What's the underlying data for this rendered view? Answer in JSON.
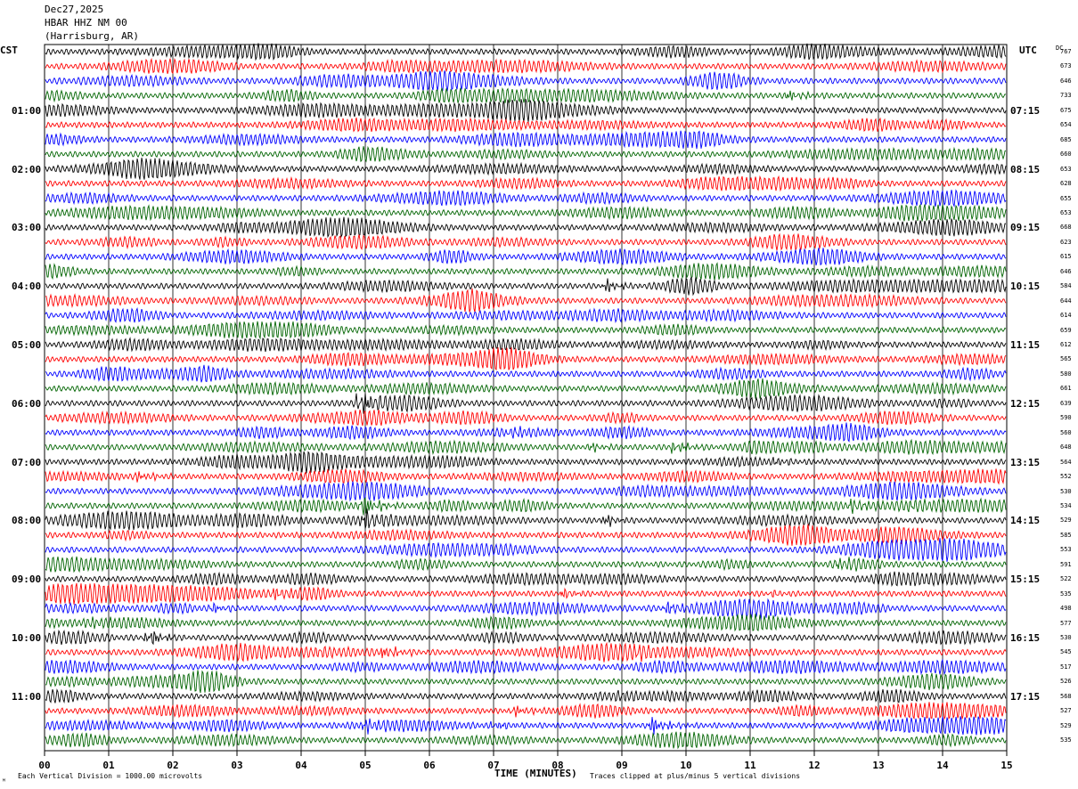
{
  "header": {
    "date": "Dec27,2025",
    "station": "HBAR HHZ NM 00",
    "location": "(Harrisburg, AR)"
  },
  "left_axis_title": "CST",
  "right_axis_title": "UTC",
  "dc_title": "DC",
  "xaxis_title": "TIME (MINUTES)",
  "footer": {
    "scale_note": "Each Vertical Division = 1000.00 microvolts",
    "clip_note": "Traces clipped at plus/minus 5 vertical divisions",
    "corner_mark": "ᴹ"
  },
  "colors": {
    "trace_cycle": [
      "#000000",
      "#ff0000",
      "#0000ff",
      "#006400"
    ],
    "grid": "#000000"
  },
  "chart_data": {
    "type": "line",
    "title": "",
    "xlabel": "TIME (MINUTES)",
    "xlim": [
      0,
      15
    ],
    "x_ticks": [
      "00",
      "01",
      "02",
      "03",
      "04",
      "05",
      "06",
      "07",
      "08",
      "09",
      "10",
      "11",
      "12",
      "13",
      "14",
      "15"
    ],
    "row_count": 48,
    "minutes_per_row": 15,
    "left_time_labels": [
      {
        "row": 4,
        "label": "01:00"
      },
      {
        "row": 8,
        "label": "02:00"
      },
      {
        "row": 12,
        "label": "03:00"
      },
      {
        "row": 16,
        "label": "04:00"
      },
      {
        "row": 20,
        "label": "05:00"
      },
      {
        "row": 24,
        "label": "06:00"
      },
      {
        "row": 28,
        "label": "07:00"
      },
      {
        "row": 32,
        "label": "08:00"
      },
      {
        "row": 36,
        "label": "09:00"
      },
      {
        "row": 40,
        "label": "10:00"
      },
      {
        "row": 44,
        "label": "11:00"
      }
    ],
    "right_time_labels": [
      {
        "row": 4,
        "label": "07:15"
      },
      {
        "row": 8,
        "label": "08:15"
      },
      {
        "row": 12,
        "label": "09:15"
      },
      {
        "row": 16,
        "label": "10:15"
      },
      {
        "row": 20,
        "label": "11:15"
      },
      {
        "row": 24,
        "label": "12:15"
      },
      {
        "row": 28,
        "label": "13:15"
      },
      {
        "row": 32,
        "label": "14:15"
      },
      {
        "row": 36,
        "label": "15:15"
      },
      {
        "row": 40,
        "label": "16:15"
      },
      {
        "row": 44,
        "label": "17:15"
      }
    ],
    "dc_offsets": [
      "767",
      "673",
      "646",
      "733",
      "675",
      "654",
      "685",
      "660",
      "653",
      "628",
      "655",
      "653",
      "668",
      "623",
      "615",
      "646",
      "584",
      "644",
      "614",
      "659",
      "612",
      "565",
      "580",
      "661",
      "639",
      "590",
      "560",
      "648",
      "564",
      "552",
      "530",
      "534",
      "529",
      "585",
      "553",
      "591",
      "522",
      "535",
      "498",
      "577",
      "530",
      "545",
      "517",
      "526",
      "568",
      "527",
      "529",
      "535"
    ],
    "events": [
      {
        "row": 3,
        "minute": 11.6,
        "amp": 0.6
      },
      {
        "row": 16,
        "minute": 8.75,
        "amp": 0.8
      },
      {
        "row": 24,
        "minute": 4.9,
        "amp": 1.6
      },
      {
        "row": 26,
        "minute": 7.25,
        "amp": 0.7
      },
      {
        "row": 27,
        "minute": 9.8,
        "amp": 0.9
      },
      {
        "row": 27,
        "minute": 8.5,
        "amp": 0.5
      },
      {
        "row": 28,
        "minute": 11.4,
        "amp": 0.4
      },
      {
        "row": 29,
        "minute": 1.45,
        "amp": 0.5
      },
      {
        "row": 31,
        "minute": 4.95,
        "amp": 1.5
      },
      {
        "row": 31,
        "minute": 12.6,
        "amp": 0.7
      },
      {
        "row": 31,
        "minute": 13.5,
        "amp": 0.5
      },
      {
        "row": 32,
        "minute": 8.7,
        "amp": 0.8
      },
      {
        "row": 32,
        "minute": 4.95,
        "amp": 1.2
      },
      {
        "row": 35,
        "minute": 12.4,
        "amp": 0.6
      },
      {
        "row": 37,
        "minute": 3.6,
        "amp": 0.6
      },
      {
        "row": 37,
        "minute": 8.1,
        "amp": 0.5
      },
      {
        "row": 37,
        "minute": 11.3,
        "amp": 0.4
      },
      {
        "row": 38,
        "minute": 2.6,
        "amp": 0.6
      },
      {
        "row": 38,
        "minute": 9.7,
        "amp": 0.7
      },
      {
        "row": 38,
        "minute": 11.2,
        "amp": 0.6
      },
      {
        "row": 39,
        "minute": 0.65,
        "amp": 0.5
      },
      {
        "row": 40,
        "minute": 1.6,
        "amp": 1.2
      },
      {
        "row": 41,
        "minute": 4.2,
        "amp": 0.5
      },
      {
        "row": 41,
        "minute": 5.3,
        "amp": 0.8
      },
      {
        "row": 41,
        "minute": 9.2,
        "amp": 0.6
      },
      {
        "row": 44,
        "minute": 8.9,
        "amp": 0.5
      },
      {
        "row": 45,
        "minute": 7.3,
        "amp": 0.7
      },
      {
        "row": 46,
        "minute": 5.0,
        "amp": 0.7
      },
      {
        "row": 46,
        "minute": 7.0,
        "amp": 0.6
      },
      {
        "row": 46,
        "minute": 9.45,
        "amp": 1.2
      }
    ]
  }
}
